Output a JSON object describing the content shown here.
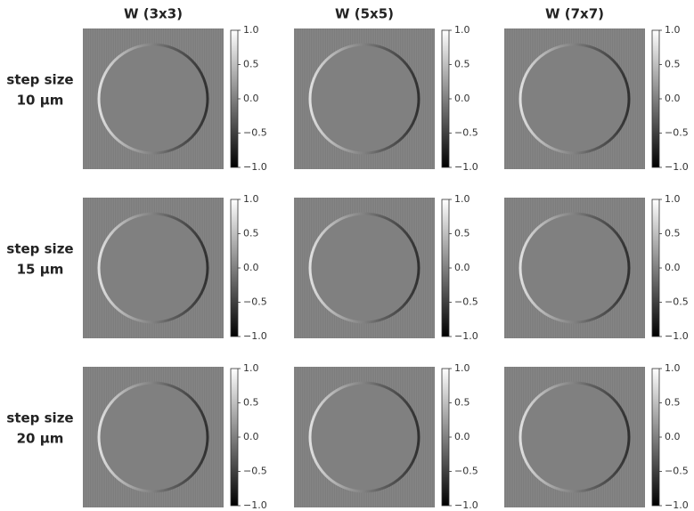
{
  "columns": [
    "W (3x3)",
    "W (5x5)",
    "W (7x7)"
  ],
  "rows": [
    {
      "label": [
        "step size",
        "10 µm"
      ]
    },
    {
      "label": [
        "step size",
        "15 µm"
      ]
    },
    {
      "label": [
        "step size",
        "20 µm"
      ]
    }
  ],
  "colorbar": {
    "lim": [
      -1,
      1
    ],
    "ticks": [
      {
        "value": 1,
        "label": "1.0"
      },
      {
        "value": 0.5,
        "label": "0.5"
      },
      {
        "value": 0,
        "label": "0.0"
      },
      {
        "value": -0.5,
        "label": "−0.5"
      },
      {
        "value": -1,
        "label": "−1.0"
      }
    ]
  }
}
